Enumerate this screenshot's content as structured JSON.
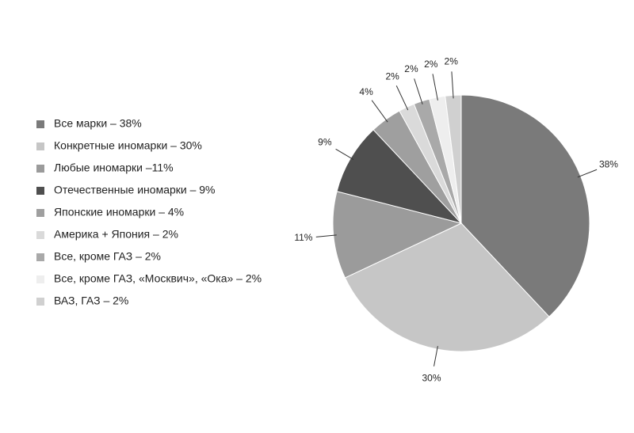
{
  "chart_data": {
    "type": "pie",
    "categories": [
      "Все марки – 38%",
      "Конкретные иномарки – 30%",
      "Любые иномарки –11%",
      "Отечественные иномарки – 9%",
      "Японские иномарки – 4%",
      "Америка + Япония – 2%",
      "Все, кроме ГАЗ – 2%",
      "Все, кроме ГАЗ, «Москвич», «Ока» – 2%",
      "ВАЗ, ГАЗ – 2%"
    ],
    "values": [
      38,
      30,
      11,
      9,
      4,
      2,
      2,
      2,
      2
    ],
    "value_labels": [
      "38%",
      "30%",
      "11%",
      "9%",
      "4%",
      "2%",
      "2%",
      "2%",
      "2%"
    ],
    "colors": [
      "#7a7a7a",
      "#c6c6c6",
      "#9b9b9b",
      "#4f4f4f",
      "#9f9f9f",
      "#dadada",
      "#a9a9a9",
      "#eeeeee",
      "#d0d0d0"
    ],
    "legend": "left"
  }
}
